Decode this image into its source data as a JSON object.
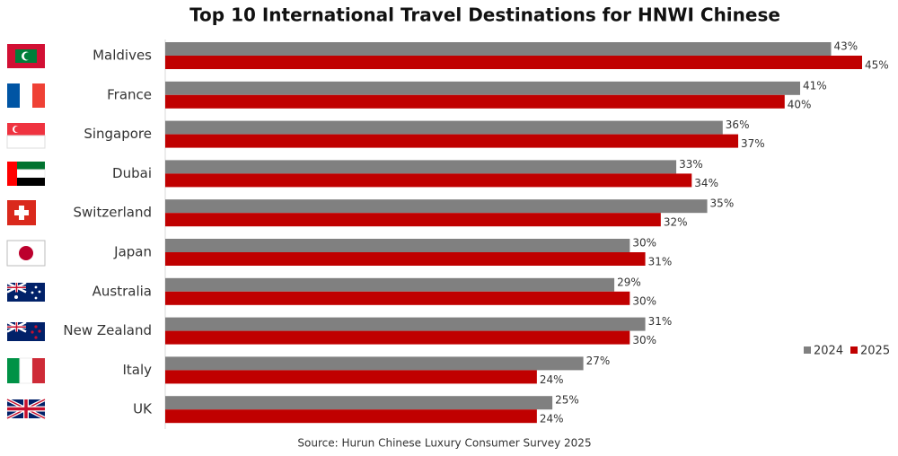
{
  "chart_data": {
    "type": "barh",
    "title": "Top 10 International Travel Destinations for HNWI Chinese",
    "source": "Source: Hurun Chinese Luxury Consumer Survey 2025",
    "categories": [
      "Maldives",
      "France",
      "Singapore",
      "Dubai",
      "Switzerland",
      "Japan",
      "Australia",
      "New Zealand",
      "Italy",
      "UK"
    ],
    "series": [
      {
        "name": "2024",
        "color": "#808080",
        "values": [
          43,
          41,
          36,
          33,
          35,
          30,
          29,
          31,
          27,
          25
        ],
        "value_labels": [
          "43%",
          "41%",
          "36%",
          "33%",
          "35%",
          "30%",
          "29%",
          "31%",
          "27%",
          "25%"
        ]
      },
      {
        "name": "2025",
        "color": "#c00000",
        "values": [
          45,
          40,
          37,
          34,
          32,
          31,
          30,
          30,
          24,
          24
        ],
        "value_labels": [
          "45%",
          "40%",
          "37%",
          "34%",
          "32%",
          "31%",
          "30%",
          "30%",
          "24%",
          "24%"
        ]
      }
    ],
    "legend": "right"
  }
}
